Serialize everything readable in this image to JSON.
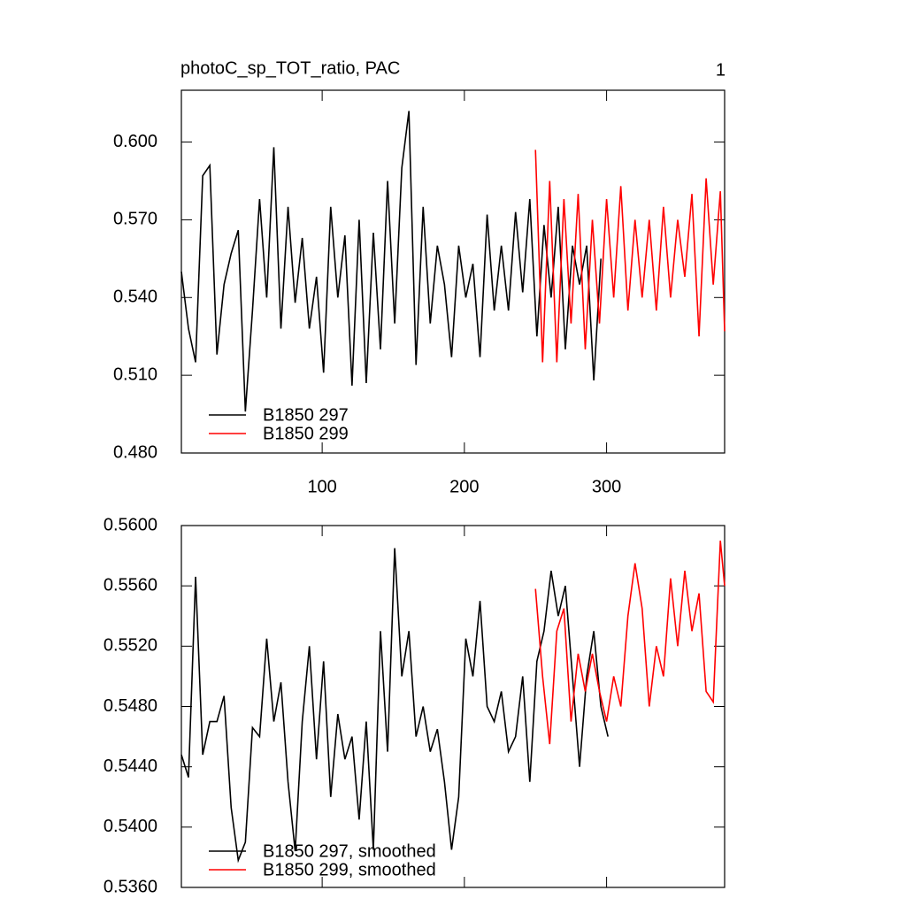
{
  "chart_data": [
    {
      "type": "line",
      "title": "photoC_sp_TOT_ratio, PAC",
      "annotation": "1",
      "xlim": [
        1,
        383
      ],
      "xticks": [
        100,
        200,
        300
      ],
      "xticklabels": true,
      "ylim": [
        0.48,
        0.62
      ],
      "yticks": [
        {
          "value": 0.48,
          "label": "0.480"
        },
        {
          "value": 0.51,
          "label": "0.510"
        },
        {
          "value": 0.54,
          "label": "0.540"
        },
        {
          "value": 0.57,
          "label": "0.570"
        },
        {
          "value": 0.6,
          "label": "0.600"
        }
      ],
      "series": [
        {
          "name": "B1850 297",
          "color": "#000000",
          "x": [
            1,
            6,
            11,
            16,
            21,
            26,
            31,
            36,
            41,
            46,
            51,
            56,
            61,
            66,
            71,
            76,
            81,
            86,
            91,
            96,
            101,
            106,
            111,
            116,
            121,
            126,
            131,
            136,
            141,
            146,
            151,
            156,
            161,
            166,
            171,
            176,
            181,
            186,
            191,
            196,
            201,
            206,
            211,
            216,
            221,
            226,
            231,
            236,
            241,
            246,
            251,
            256,
            261,
            266,
            271,
            276,
            281,
            286,
            291,
            296
          ],
          "values": [
            0.55,
            0.528,
            0.515,
            0.587,
            0.591,
            0.518,
            0.545,
            0.557,
            0.566,
            0.496,
            0.535,
            0.578,
            0.54,
            0.598,
            0.528,
            0.575,
            0.538,
            0.563,
            0.528,
            0.548,
            0.511,
            0.575,
            0.54,
            0.564,
            0.506,
            0.57,
            0.507,
            0.565,
            0.52,
            0.585,
            0.53,
            0.59,
            0.612,
            0.514,
            0.575,
            0.53,
            0.56,
            0.545,
            0.517,
            0.56,
            0.54,
            0.553,
            0.517,
            0.572,
            0.535,
            0.56,
            0.535,
            0.573,
            0.542,
            0.578,
            0.525,
            0.568,
            0.54,
            0.575,
            0.52,
            0.56,
            0.545,
            0.56,
            0.508,
            0.555
          ]
        },
        {
          "name": "B1850 299",
          "color": "#ff0000",
          "x": [
            250,
            255,
            260,
            265,
            270,
            275,
            280,
            285,
            290,
            295,
            300,
            305,
            310,
            315,
            320,
            325,
            330,
            335,
            340,
            345,
            350,
            355,
            360,
            365,
            370,
            375,
            380,
            383
          ],
          "values": [
            0.597,
            0.515,
            0.585,
            0.515,
            0.578,
            0.53,
            0.58,
            0.52,
            0.57,
            0.53,
            0.578,
            0.54,
            0.583,
            0.535,
            0.57,
            0.54,
            0.57,
            0.535,
            0.575,
            0.54,
            0.57,
            0.548,
            0.58,
            0.525,
            0.586,
            0.545,
            0.581,
            0.527
          ]
        }
      ]
    },
    {
      "type": "line",
      "xlim": [
        1,
        383
      ],
      "xticks": [
        100,
        200,
        300
      ],
      "xticklabels": false,
      "ylim": [
        0.536,
        0.56
      ],
      "yticks": [
        {
          "value": 0.536,
          "label": "0.5360"
        },
        {
          "value": 0.54,
          "label": "0.5400"
        },
        {
          "value": 0.544,
          "label": "0.5440"
        },
        {
          "value": 0.548,
          "label": "0.5480"
        },
        {
          "value": 0.552,
          "label": "0.5520"
        },
        {
          "value": 0.556,
          "label": "0.5560"
        },
        {
          "value": 0.56,
          "label": "0.5600"
        }
      ],
      "series": [
        {
          "name": "B1850 297, smoothed",
          "color": "#000000",
          "x": [
            1,
            6,
            11,
            16,
            21,
            26,
            31,
            36,
            41,
            46,
            51,
            56,
            61,
            66,
            71,
            76,
            81,
            86,
            91,
            96,
            101,
            106,
            111,
            116,
            121,
            126,
            131,
            136,
            141,
            146,
            151,
            156,
            161,
            166,
            171,
            176,
            181,
            186,
            191,
            196,
            201,
            206,
            211,
            216,
            221,
            226,
            231,
            236,
            241,
            246,
            251,
            256,
            261,
            266,
            271,
            276,
            281,
            286,
            291,
            296,
            301
          ],
          "values": [
            0.5448,
            0.5433,
            0.5566,
            0.5448,
            0.547,
            0.547,
            0.5487,
            0.5413,
            0.5378,
            0.539,
            0.5466,
            0.546,
            0.5525,
            0.547,
            0.5496,
            0.543,
            0.5384,
            0.547,
            0.552,
            0.5445,
            0.551,
            0.542,
            0.5475,
            0.5445,
            0.546,
            0.5405,
            0.547,
            0.5385,
            0.553,
            0.545,
            0.5585,
            0.55,
            0.553,
            0.546,
            0.548,
            0.545,
            0.5465,
            0.543,
            0.5385,
            0.542,
            0.5525,
            0.55,
            0.555,
            0.548,
            0.547,
            0.549,
            0.545,
            0.546,
            0.55,
            0.543,
            0.551,
            0.553,
            0.557,
            0.554,
            0.556,
            0.55,
            0.544,
            0.55,
            0.553,
            0.548,
            0.546
          ]
        },
        {
          "name": "B1850 299, smoothed",
          "color": "#ff0000",
          "x": [
            250,
            255,
            260,
            265,
            270,
            275,
            280,
            285,
            290,
            295,
            300,
            305,
            310,
            315,
            320,
            325,
            330,
            335,
            340,
            345,
            350,
            355,
            360,
            365,
            370,
            375,
            380,
            383
          ],
          "values": [
            0.5558,
            0.55,
            0.5455,
            0.553,
            0.5545,
            0.547,
            0.5515,
            0.549,
            0.5515,
            0.549,
            0.547,
            0.55,
            0.548,
            0.554,
            0.5575,
            0.5545,
            0.548,
            0.552,
            0.55,
            0.5565,
            0.552,
            0.557,
            0.553,
            0.5555,
            0.549,
            0.5483,
            0.559,
            0.556
          ]
        }
      ]
    }
  ]
}
